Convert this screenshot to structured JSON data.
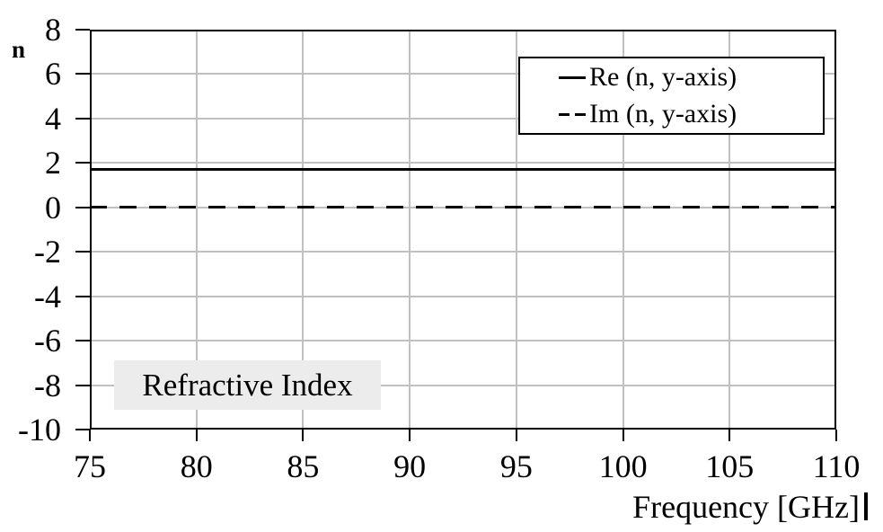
{
  "colors": {
    "grid": "#c0c0c0",
    "axis": "#000000",
    "line": "#000000",
    "annotation_bg": "#ececec",
    "plot_bg": "#ffffff"
  },
  "text_cursor": "|",
  "chart_data": {
    "type": "line",
    "title": "",
    "annotation": "Refractive Index",
    "xlabel": "Frequency [GHz]",
    "ylabel": "n",
    "xlim": [
      75,
      110
    ],
    "ylim": [
      -10,
      8
    ],
    "x_ticks": [
      75,
      80,
      85,
      90,
      95,
      100,
      105,
      110
    ],
    "y_ticks": [
      8,
      6,
      4,
      2,
      0,
      -2,
      -4,
      -6,
      -8,
      -10
    ],
    "grid": true,
    "legend_position": "top-right",
    "series": [
      {
        "name": "Re (n, y-axis)",
        "line_style": "solid",
        "color": "#000000",
        "x": [
          75,
          110
        ],
        "values": [
          1.7,
          1.7
        ]
      },
      {
        "name": "Im (n, y-axis)",
        "line_style": "dashed",
        "color": "#000000",
        "x": [
          75,
          110
        ],
        "values": [
          0,
          0
        ]
      }
    ]
  }
}
